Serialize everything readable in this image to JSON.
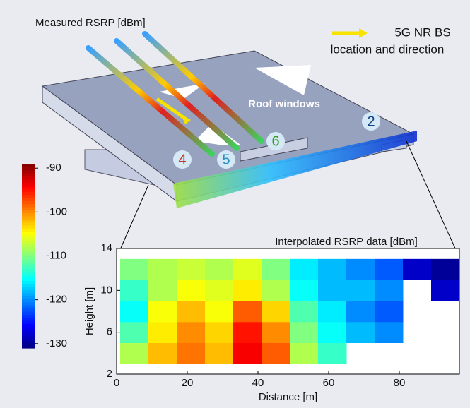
{
  "illustration": {
    "title": "Measured RSRP [dBm]",
    "bs_legend_1": "5G NR BS",
    "bs_legend_2": "location and direction",
    "roof_label": "Roof windows",
    "markers": [
      "2",
      "4",
      "5",
      "6"
    ]
  },
  "chart_data": {
    "type": "heatmap",
    "title": "Interpolated RSRP data [dBm]",
    "x_label": "Distance [m]",
    "y_label": "Height [m]",
    "xlim": [
      0,
      97
    ],
    "ylim": [
      2,
      14
    ],
    "xticks": [
      0,
      20,
      40,
      60,
      80
    ],
    "yticks": [
      2,
      6,
      10,
      14
    ],
    "xbins": [
      1,
      9,
      17,
      25,
      33,
      41,
      49,
      57,
      65,
      73,
      81,
      89,
      97
    ],
    "ybins": [
      3,
      5,
      7,
      9,
      11,
      13
    ],
    "values": [
      [
        -108,
        -102,
        -99,
        -102,
        -94,
        -98,
        -108,
        -113,
        null,
        null,
        null,
        null
      ],
      [
        -112,
        -104,
        -100,
        -103,
        -95,
        -100,
        -110,
        -115,
        -118,
        -120,
        null,
        null
      ],
      [
        -115,
        -105,
        -102,
        -105,
        -98,
        -103,
        -112,
        -116,
        -120,
        -122,
        null,
        null
      ],
      [
        -113,
        -108,
        -105,
        -106,
        -104,
        -108,
        -115,
        -118,
        -118,
        -120,
        null,
        -128
      ],
      [
        -110,
        -108,
        -107,
        -108,
        -106,
        -110,
        -116,
        -118,
        -120,
        -122,
        -128,
        -130
      ]
    ],
    "colormap": "jet",
    "clim": [
      -131,
      -89
    ],
    "cticks": [
      -90,
      -100,
      -110,
      -120,
      -130
    ]
  }
}
